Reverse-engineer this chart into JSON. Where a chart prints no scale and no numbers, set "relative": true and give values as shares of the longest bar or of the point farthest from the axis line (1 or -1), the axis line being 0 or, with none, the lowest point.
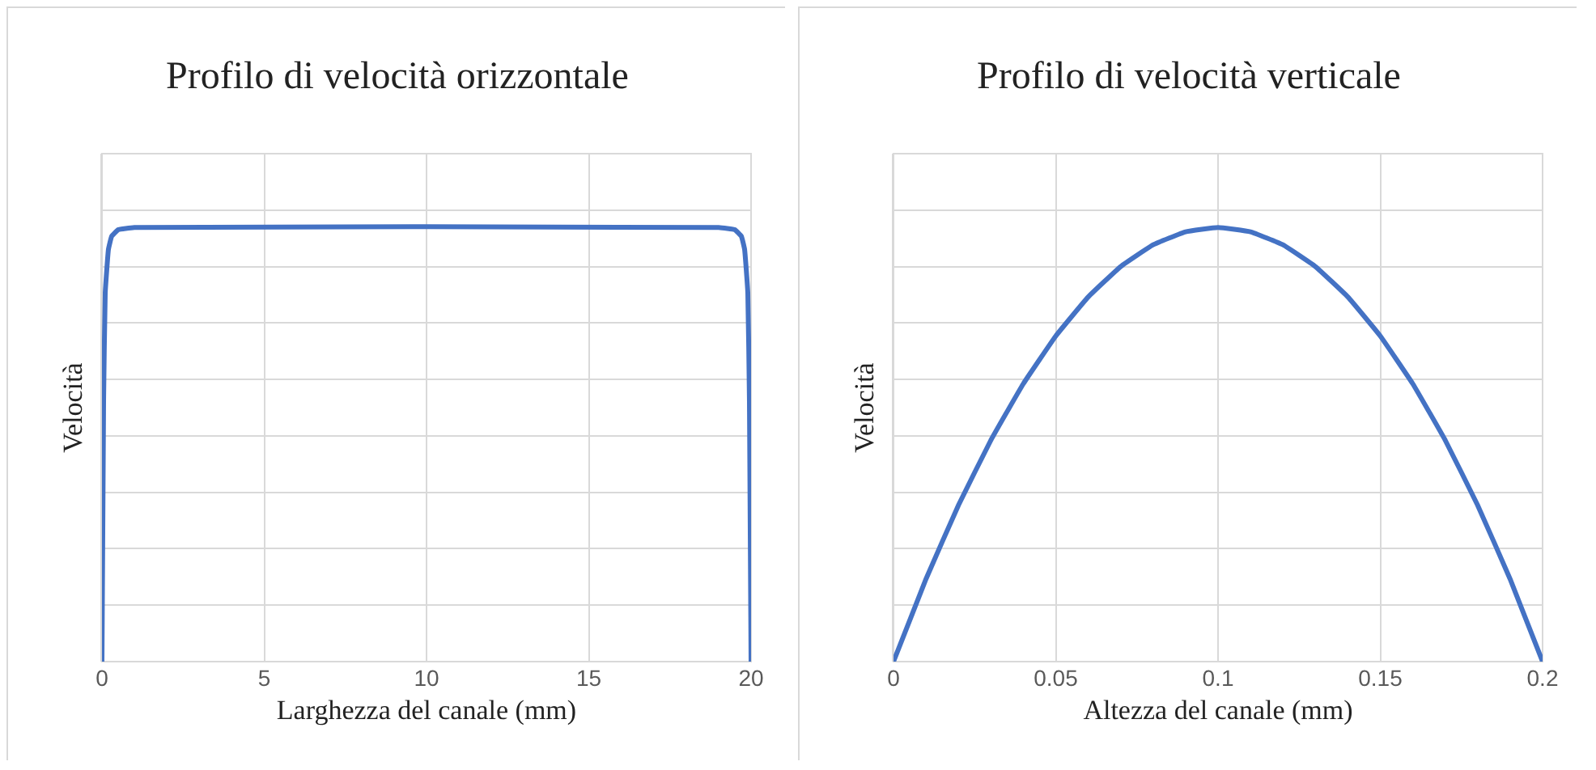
{
  "chart_data": [
    {
      "type": "line",
      "title": "Profilo di velocità orizzontale",
      "xlabel": "Larghezza del canale (mm)",
      "ylabel": "Velocità",
      "relative": true,
      "grid": true,
      "xlim": [
        0,
        20
      ],
      "xticks": [
        0,
        5,
        10,
        15,
        20
      ],
      "series": [
        {
          "color": "#4472c4",
          "x": [
            0,
            0.05,
            0.1,
            0.2,
            0.3,
            0.5,
            1,
            19,
            19.5,
            19.7,
            19.8,
            19.9,
            19.95,
            20
          ],
          "values": [
            0,
            0.6,
            0.85,
            0.95,
            0.98,
            0.995,
            1,
            1,
            0.995,
            0.98,
            0.95,
            0.85,
            0.6,
            0
          ]
        }
      ]
    },
    {
      "type": "line",
      "title": "Profilo di velocità verticale",
      "xlabel": "Altezza del canale (mm)",
      "ylabel": "Velocità",
      "relative": true,
      "grid": true,
      "xlim": [
        0,
        0.2
      ],
      "xticks": [
        0,
        0.05,
        0.1,
        0.15,
        0.2
      ],
      "series": [
        {
          "color": "#4472c4",
          "x": [
            0,
            0.01,
            0.02,
            0.03,
            0.04,
            0.05,
            0.06,
            0.07,
            0.08,
            0.09,
            0.1,
            0.11,
            0.12,
            0.13,
            0.14,
            0.15,
            0.16,
            0.17,
            0.18,
            0.19,
            0.2
          ],
          "values": [
            0,
            0.19,
            0.36,
            0.51,
            0.64,
            0.75,
            0.84,
            0.91,
            0.96,
            0.99,
            1,
            0.99,
            0.96,
            0.91,
            0.84,
            0.75,
            0.64,
            0.51,
            0.36,
            0.19,
            0
          ]
        }
      ]
    }
  ]
}
